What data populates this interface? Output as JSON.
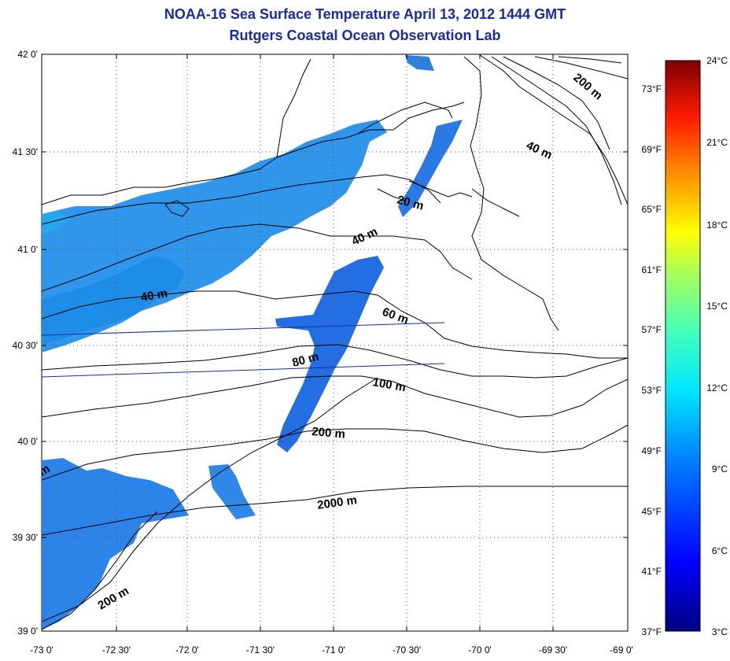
{
  "title": "NOAA-16 Sea Surface Temperature April 13, 2012 1444 GMT",
  "subtitle": "Rutgers Coastal Ocean Observation Lab",
  "lat_ticks": [
    "42 0'",
    "41 30'",
    "41 0'",
    "40 30'",
    "40 0'",
    "39 30'",
    "39 0'"
  ],
  "lon_ticks": [
    "-73 0'",
    "-72 30'",
    "-72 0'",
    "-71 30'",
    "-71 0'",
    "-70 30'",
    "-70 0'",
    "-69 30'",
    "-69 0'"
  ],
  "fahrenheit_ticks": [
    "73°F",
    "69°F",
    "65°F",
    "61°F",
    "57°F",
    "53°F",
    "49°F",
    "45°F",
    "41°F",
    "37°F"
  ],
  "celsius_ticks": [
    "24°C",
    "21°C",
    "18°C",
    "15°C",
    "12°C",
    "9°C",
    "6°C",
    "3°C"
  ],
  "contour_labels": [
    "200 m",
    "40 m",
    "20 m",
    "40 m",
    "40 m",
    "60 m",
    "80 m",
    "100 m",
    "200 m",
    "2000 m",
    "200 m",
    "m"
  ],
  "colors": {
    "title": "#1a2aa8",
    "sst_cold": "#2a6fe0",
    "sst_mid": "#1e9be8",
    "track": "#1a2aa8"
  }
}
